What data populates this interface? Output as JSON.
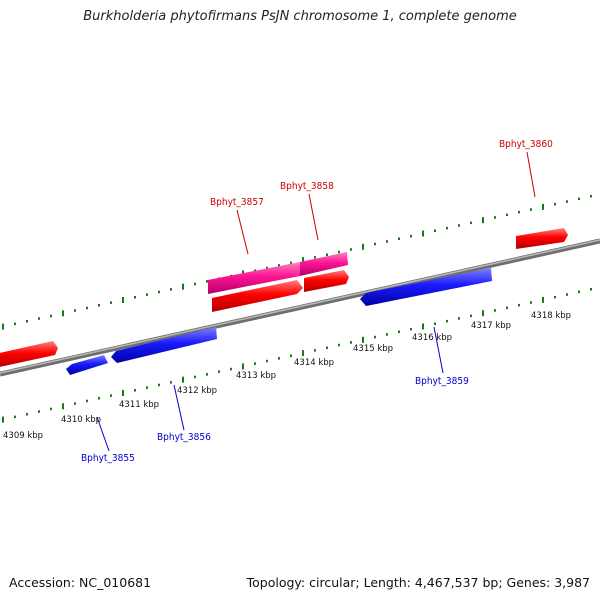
{
  "title": "Burkholderia phytofirmans PsJN chromosome 1, complete genome",
  "accession_line": "Accession: NC_010681",
  "info_line": "Topology: circular; Length: 4,467,537 bp; Genes: 3,987",
  "colors": {
    "forward_gene": "#ff0000",
    "reverse_gene": "#1a1aff",
    "highlight_gene": "#ff1493",
    "backbone": "#8a8a8a",
    "ticks": "#1a7a1a",
    "forward_label": "#cc0000",
    "reverse_label": "#0000cc"
  },
  "kbp_labels": [
    "4309 kbp",
    "4310 kbp",
    "4311 kbp",
    "4312 kbp",
    "4313 kbp",
    "4314 kbp",
    "4315 kbp",
    "4316 kbp",
    "4317 kbp",
    "4318 kbp"
  ],
  "gene_labels": [
    {
      "name": "Bphyt_3855",
      "strand": "reverse"
    },
    {
      "name": "Bphyt_3856",
      "strand": "reverse"
    },
    {
      "name": "Bphyt_3857",
      "strand": "forward"
    },
    {
      "name": "Bphyt_3858",
      "strand": "forward"
    },
    {
      "name": "Bphyt_3859",
      "strand": "reverse"
    },
    {
      "name": "Bphyt_3860",
      "strand": "forward"
    }
  ]
}
